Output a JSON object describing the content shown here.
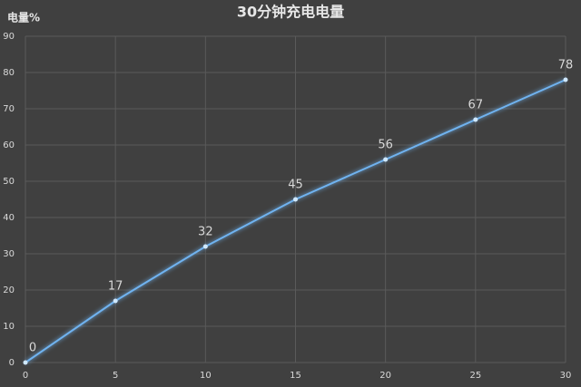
{
  "chart_data": {
    "type": "line",
    "title": "30分钟充电电量",
    "y_label": "电量%",
    "x": [
      0,
      5,
      10,
      15,
      20,
      25,
      30
    ],
    "values": [
      0,
      17,
      32,
      45,
      56,
      67,
      78
    ],
    "color": "#6fb3f0",
    "xlim": [
      0,
      30
    ],
    "xticks": [
      0,
      5,
      10,
      15,
      20,
      25,
      30
    ],
    "ylim": [
      0,
      90
    ],
    "yticks": [
      0,
      10,
      20,
      30,
      40,
      50,
      60,
      70,
      80,
      90
    ],
    "grid": true
  }
}
